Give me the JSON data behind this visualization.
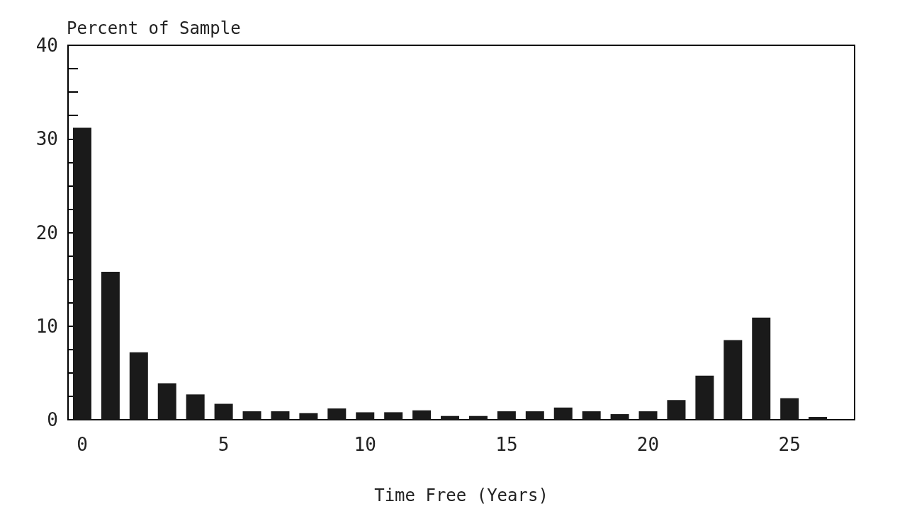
{
  "chart_data": {
    "type": "bar",
    "ylabel": "Percent of Sample",
    "xlabel": "Time Free (Years)",
    "x": [
      0,
      1,
      2,
      3,
      4,
      5,
      6,
      7,
      8,
      9,
      10,
      11,
      12,
      13,
      14,
      15,
      16,
      17,
      18,
      19,
      20,
      21,
      22,
      23,
      24,
      25,
      26
    ],
    "values": [
      31.2,
      15.8,
      7.2,
      3.9,
      2.7,
      1.7,
      0.9,
      0.9,
      0.7,
      1.2,
      0.8,
      0.8,
      1.0,
      0.4,
      0.4,
      0.9,
      0.9,
      1.3,
      0.9,
      0.6,
      0.9,
      2.1,
      4.7,
      8.5,
      10.9,
      2.3,
      0.3
    ],
    "color": "#1a1a1a",
    "xlim": [
      -0.5,
      27.3
    ],
    "xticks": [
      0,
      5,
      10,
      15,
      20,
      25
    ],
    "ylim": [
      0,
      40
    ],
    "yticks": [
      0,
      {
        "value": 2.5,
        "label": null
      },
      {
        "value": 5,
        "label": null
      },
      {
        "value": 7.5,
        "label": null
      },
      10,
      {
        "value": 12.5,
        "label": null
      },
      {
        "value": 15,
        "label": null
      },
      {
        "value": 17.5,
        "label": null
      },
      20,
      {
        "value": 22.5,
        "label": null
      },
      {
        "value": 25,
        "label": null
      },
      {
        "value": 27.5,
        "label": null
      },
      30,
      {
        "value": 32.5,
        "label": null
      },
      {
        "value": 35,
        "label": null
      },
      {
        "value": 37.5,
        "label": null
      },
      40
    ],
    "grid": false
  }
}
